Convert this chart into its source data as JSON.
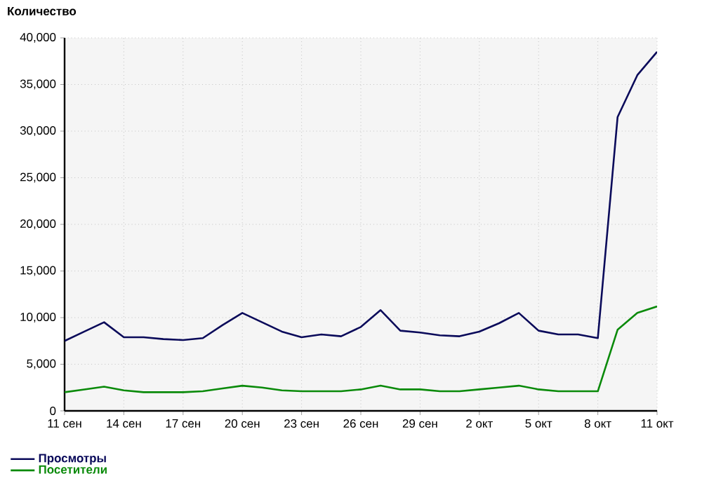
{
  "chart_data": {
    "type": "line",
    "ylabel": "Количество",
    "categories": [
      "11 сен",
      null,
      null,
      "14 сен",
      null,
      null,
      "17 сен",
      null,
      null,
      "20 сен",
      null,
      null,
      "23 сен",
      null,
      null,
      "26 сен",
      null,
      null,
      "29 сен",
      null,
      null,
      "2 окт",
      null,
      null,
      "5 окт",
      null,
      null,
      "8 окт",
      null,
      null,
      "11 окт"
    ],
    "series": [
      {
        "name": "Просмотры",
        "color": "#0a0a5a",
        "values": [
          7500,
          8500,
          9500,
          7900,
          7900,
          7700,
          7600,
          7800,
          9200,
          10500,
          9500,
          8500,
          7900,
          8200,
          8000,
          9000,
          10800,
          8600,
          8400,
          8100,
          8000,
          8500,
          9400,
          10500,
          8600,
          8200,
          8200,
          7800,
          31500,
          36000,
          38500
        ]
      },
      {
        "name": "Посетители",
        "color": "#0a8a0a",
        "values": [
          2000,
          2300,
          2600,
          2200,
          2000,
          2000,
          2000,
          2100,
          2400,
          2700,
          2500,
          2200,
          2100,
          2100,
          2100,
          2300,
          2700,
          2300,
          2300,
          2100,
          2100,
          2300,
          2500,
          2700,
          2300,
          2100,
          2100,
          2100,
          8700,
          10500,
          11200
        ]
      }
    ],
    "ylim": [
      0,
      40000
    ],
    "yticks": [
      0,
      {
        "value": 5000,
        "label": "5,000"
      },
      {
        "value": 10000,
        "label": "10,000"
      },
      {
        "value": 15000,
        "label": "15,000"
      },
      {
        "value": 20000,
        "label": "20,000"
      },
      {
        "value": 25000,
        "label": "25,000"
      },
      {
        "value": 30000,
        "label": "30,000"
      },
      {
        "value": 35000,
        "label": "35,000"
      },
      {
        "value": 40000,
        "label": "40,000"
      }
    ],
    "grid": true,
    "legend": "bottom left",
    "marker": "none",
    "line_style": "solid"
  }
}
